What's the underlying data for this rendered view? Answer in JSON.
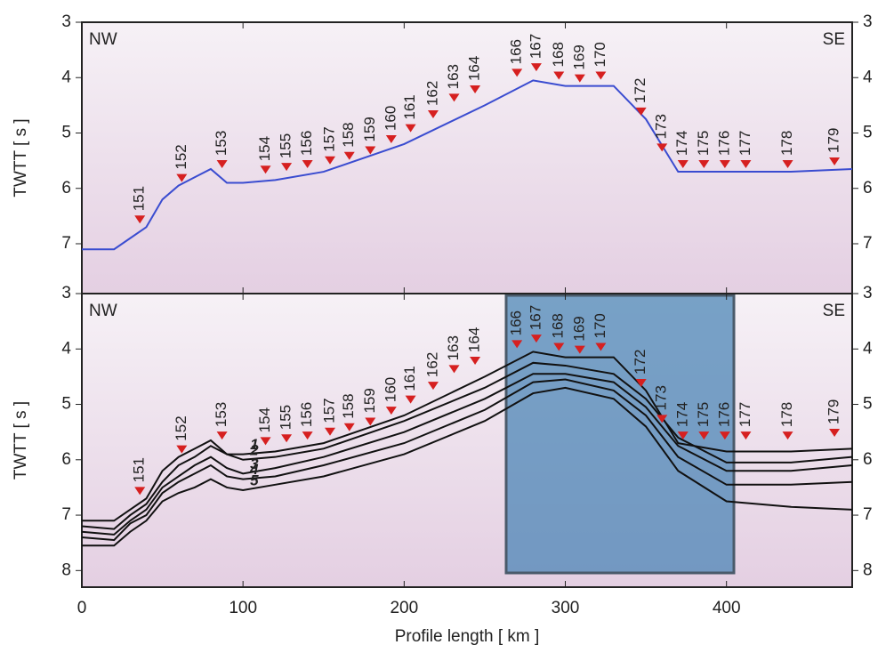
{
  "chart_data": [
    {
      "type": "line",
      "y_label": "TWTT [ s ]",
      "annotations": [
        "NW",
        "SE"
      ],
      "xlim": [
        0,
        478
      ],
      "ylim": [
        3,
        7.9
      ],
      "yticks": [
        3,
        4,
        5,
        6,
        7
      ],
      "xticks": [
        0,
        100,
        200,
        300,
        400
      ],
      "x": [
        0,
        20,
        30,
        40,
        50,
        60,
        70,
        80,
        90,
        100,
        120,
        150,
        200,
        250,
        280,
        300,
        330,
        350,
        370,
        400,
        440,
        478
      ],
      "series": [
        {
          "color": "#3a4cd0",
          "values": [
            7.1,
            7.1,
            6.9,
            6.7,
            6.2,
            5.95,
            5.8,
            5.65,
            5.9,
            5.9,
            5.85,
            5.7,
            5.2,
            4.5,
            4.05,
            4.15,
            4.15,
            4.75,
            5.7,
            5.7,
            5.7,
            5.65
          ]
        }
      ],
      "stations": {
        "color": "#d62020",
        "labels": [
          "151",
          "152",
          "153",
          "154",
          "155",
          "156",
          "157",
          "158",
          "159",
          "160",
          "161",
          "162",
          "163",
          "164",
          "166",
          "167",
          "168",
          "169",
          "170",
          "172",
          "173",
          "174",
          "175",
          "176",
          "177",
          "178",
          "179"
        ],
        "x": [
          36,
          62,
          87,
          114,
          127,
          140,
          154,
          166,
          179,
          192,
          204,
          218,
          231,
          244,
          270,
          282,
          296,
          309,
          322,
          347,
          360,
          373,
          386,
          399,
          412,
          438,
          467
        ],
        "values": [
          6.7,
          5.95,
          5.7,
          5.8,
          5.75,
          5.7,
          5.63,
          5.55,
          5.45,
          5.25,
          5.05,
          4.8,
          4.5,
          4.35,
          4.05,
          3.95,
          4.1,
          4.15,
          4.1,
          4.75,
          5.4,
          5.7,
          5.7,
          5.7,
          5.7,
          5.7,
          5.65
        ]
      }
    },
    {
      "type": "line",
      "y_label": "TWTT [ s ]",
      "x_label": "Profile length [ km ]",
      "annotations": [
        "NW",
        "SE"
      ],
      "xlim": [
        0,
        478
      ],
      "ylim": [
        3,
        8.3
      ],
      "yticks": [
        3,
        4,
        5,
        6,
        7,
        8
      ],
      "xticks": [
        0,
        100,
        200,
        300,
        400
      ],
      "x": [
        0,
        20,
        30,
        40,
        50,
        60,
        70,
        80,
        90,
        100,
        120,
        150,
        200,
        250,
        280,
        300,
        330,
        350,
        370,
        400,
        440,
        478
      ],
      "series": [
        {
          "name": "1",
          "color": "#111111",
          "values": [
            7.1,
            7.1,
            6.9,
            6.7,
            6.2,
            5.95,
            5.8,
            5.65,
            5.9,
            5.9,
            5.85,
            5.7,
            5.2,
            4.5,
            4.05,
            4.15,
            4.15,
            4.75,
            5.7,
            5.85,
            5.85,
            5.8
          ]
        },
        {
          "name": "2",
          "color": "#111111",
          "values": [
            7.2,
            7.25,
            7.0,
            6.8,
            6.4,
            6.1,
            5.95,
            5.75,
            5.9,
            6.0,
            5.95,
            5.8,
            5.3,
            4.7,
            4.25,
            4.3,
            4.45,
            4.9,
            5.6,
            6.05,
            6.05,
            5.95
          ]
        },
        {
          "name": "3",
          "color": "#111111",
          "values": [
            7.3,
            7.35,
            7.1,
            6.9,
            6.5,
            6.3,
            6.1,
            5.95,
            6.15,
            6.25,
            6.15,
            5.95,
            5.5,
            4.9,
            4.45,
            4.45,
            4.6,
            5.05,
            5.75,
            6.2,
            6.2,
            6.1
          ]
        },
        {
          "name": "4",
          "color": "#111111",
          "values": [
            7.4,
            7.45,
            7.15,
            7.0,
            6.6,
            6.4,
            6.25,
            6.1,
            6.3,
            6.35,
            6.3,
            6.1,
            5.7,
            5.1,
            4.6,
            4.55,
            4.75,
            5.2,
            5.95,
            6.45,
            6.45,
            6.4
          ]
        },
        {
          "name": "5",
          "color": "#111111",
          "values": [
            7.55,
            7.55,
            7.3,
            7.1,
            6.75,
            6.6,
            6.5,
            6.35,
            6.5,
            6.55,
            6.45,
            6.3,
            5.9,
            5.3,
            4.8,
            4.7,
            4.9,
            5.4,
            6.2,
            6.75,
            6.85,
            6.9
          ]
        }
      ],
      "stations": {
        "color": "#d62020",
        "labels": [
          "151",
          "152",
          "153",
          "154",
          "155",
          "156",
          "157",
          "158",
          "159",
          "160",
          "161",
          "162",
          "163",
          "164",
          "166",
          "167",
          "168",
          "169",
          "170",
          "172",
          "173",
          "174",
          "175",
          "176",
          "177",
          "178",
          "179"
        ],
        "x": [
          36,
          62,
          87,
          114,
          127,
          140,
          154,
          166,
          179,
          192,
          204,
          218,
          231,
          244,
          270,
          282,
          296,
          309,
          322,
          347,
          360,
          373,
          386,
          399,
          412,
          438,
          467
        ],
        "values": [
          6.7,
          5.95,
          5.7,
          5.8,
          5.75,
          5.7,
          5.63,
          5.55,
          5.45,
          5.25,
          5.05,
          4.8,
          4.5,
          4.35,
          4.05,
          3.95,
          4.1,
          4.15,
          4.1,
          4.75,
          5.4,
          5.7,
          5.7,
          5.7,
          5.7,
          5.7,
          5.65
        ]
      }
    }
  ]
}
